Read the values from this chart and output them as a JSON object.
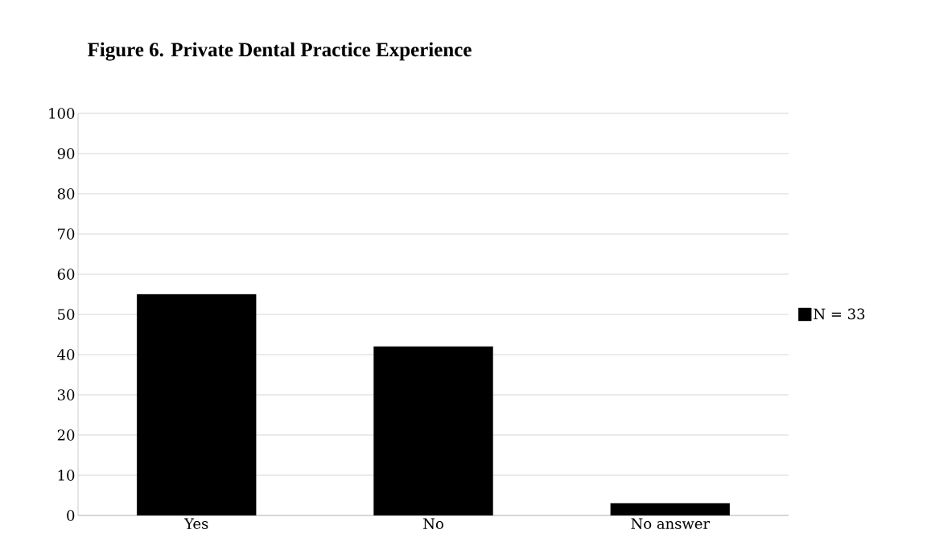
{
  "chart_data": {
    "type": "bar",
    "title": "Figure 6. Private Dental Practice Experience",
    "categories": [
      "Yes",
      "No",
      "No answer"
    ],
    "series": [
      {
        "name": "N = 33",
        "color": "#000000",
        "values": [
          55,
          42,
          3
        ]
      }
    ],
    "ylim": [
      0,
      100
    ],
    "yticks": [
      0,
      10,
      20,
      30,
      40,
      50,
      60,
      70,
      80,
      90,
      100
    ],
    "grid": "y",
    "legend": "right"
  }
}
